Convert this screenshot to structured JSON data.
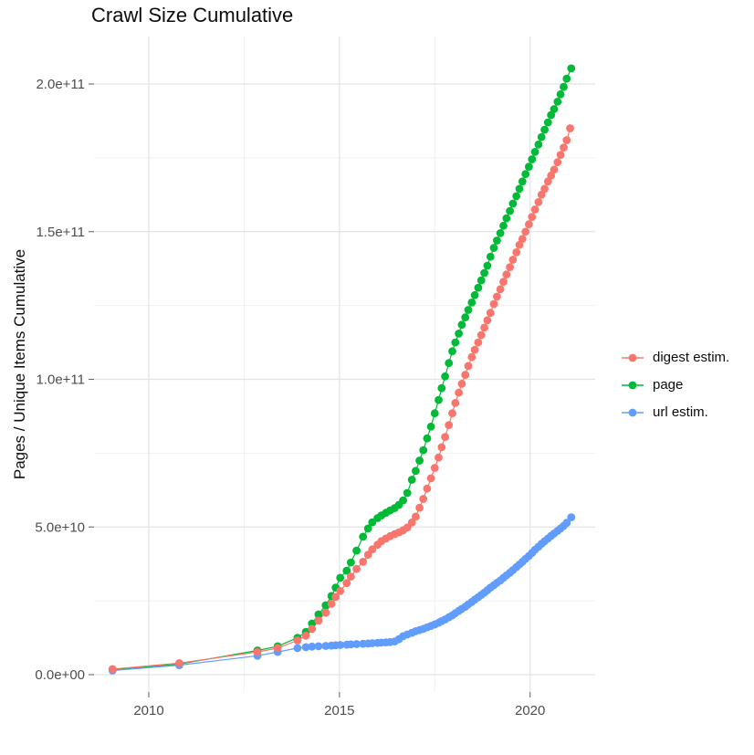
{
  "chart_data": {
    "type": "scatter",
    "title": "Crawl Size Cumulative",
    "xlabel": "",
    "ylabel": "Pages / Unique Items Cumulative",
    "legend_position": "right",
    "grid": true,
    "y_values_unit": "billions (1e9 pages / items)",
    "axes": {
      "x_domain": [
        2008.56,
        2021.7
      ],
      "y_domain_billions": [
        -4.3,
        216
      ],
      "x_ticks": [
        {
          "label": "2010",
          "value": 2010
        },
        {
          "label": "2015",
          "value": 2015
        },
        {
          "label": "2020",
          "value": 2020
        }
      ],
      "y_ticks": [
        {
          "label": "0.0e+00",
          "value": 0
        },
        {
          "label": "5.0e+10",
          "value": 50
        },
        {
          "label": "1.0e+11",
          "value": 100
        },
        {
          "label": "1.5e+11",
          "value": 150
        },
        {
          "label": "2.0e+11",
          "value": 200
        }
      ],
      "x_minor": [
        2012.5,
        2017.5
      ],
      "y_minor": [
        25,
        75,
        125,
        175
      ]
    },
    "series": [
      {
        "name": "digest estim.",
        "color": "#F8766D",
        "points": [
          [
            2009.05,
            1.9
          ],
          [
            2010.8,
            3.9
          ],
          [
            2012.85,
            7.7
          ],
          [
            2013.38,
            9.0
          ],
          [
            2013.9,
            11.6
          ],
          [
            2014.12,
            13.2
          ],
          [
            2014.28,
            15.5
          ],
          [
            2014.45,
            18.3
          ],
          [
            2014.64,
            21.0
          ],
          [
            2014.79,
            24.0
          ],
          [
            2014.9,
            26.3
          ],
          [
            2015.02,
            28.3
          ],
          [
            2015.19,
            31.0
          ],
          [
            2015.3,
            33.2
          ],
          [
            2015.45,
            35.8
          ],
          [
            2015.62,
            38.2
          ],
          [
            2015.75,
            40.6
          ],
          [
            2015.86,
            42.4
          ],
          [
            2016.0,
            44.0
          ],
          [
            2016.1,
            45.2
          ],
          [
            2016.22,
            46.1
          ],
          [
            2016.33,
            46.9
          ],
          [
            2016.45,
            47.6
          ],
          [
            2016.56,
            48.2
          ],
          [
            2016.67,
            48.9
          ],
          [
            2016.78,
            49.8
          ],
          [
            2016.9,
            51.5
          ],
          [
            2017.0,
            53.5
          ],
          [
            2017.1,
            56.5
          ],
          [
            2017.2,
            59.5
          ],
          [
            2017.3,
            63.0
          ],
          [
            2017.4,
            66.5
          ],
          [
            2017.5,
            70.0
          ],
          [
            2017.6,
            73.5
          ],
          [
            2017.68,
            77.0
          ],
          [
            2017.77,
            80.5
          ],
          [
            2017.87,
            84.5
          ],
          [
            2017.96,
            88.5
          ],
          [
            2018.04,
            92.0
          ],
          [
            2018.13,
            95.5
          ],
          [
            2018.21,
            98.5
          ],
          [
            2018.3,
            101.5
          ],
          [
            2018.38,
            104.5
          ],
          [
            2018.47,
            107.5
          ],
          [
            2018.55,
            110.0
          ],
          [
            2018.64,
            112.5
          ],
          [
            2018.72,
            115.0
          ],
          [
            2018.8,
            117.5
          ],
          [
            2018.88,
            120.0
          ],
          [
            2018.96,
            122.5
          ],
          [
            2019.05,
            125.5
          ],
          [
            2019.13,
            128.0
          ],
          [
            2019.22,
            130.5
          ],
          [
            2019.3,
            133.0
          ],
          [
            2019.38,
            135.5
          ],
          [
            2019.47,
            138.0
          ],
          [
            2019.55,
            140.5
          ],
          [
            2019.64,
            143.0
          ],
          [
            2019.72,
            145.5
          ],
          [
            2019.8,
            147.5
          ],
          [
            2019.88,
            150.0
          ],
          [
            2019.97,
            152.5
          ],
          [
            2020.05,
            155.0
          ],
          [
            2020.13,
            157.5
          ],
          [
            2020.22,
            160.0
          ],
          [
            2020.3,
            162.5
          ],
          [
            2020.38,
            164.5
          ],
          [
            2020.47,
            167.0
          ],
          [
            2020.55,
            169.0
          ],
          [
            2020.63,
            171.0
          ],
          [
            2020.72,
            173.5
          ],
          [
            2020.8,
            176.0
          ],
          [
            2020.88,
            178.5
          ],
          [
            2020.96,
            181.0
          ],
          [
            2021.05,
            185.0
          ]
        ]
      },
      {
        "name": "page",
        "color": "#00BA38",
        "points": [
          [
            2009.05,
            1.7
          ],
          [
            2010.8,
            3.6
          ],
          [
            2012.85,
            8.2
          ],
          [
            2013.38,
            9.6
          ],
          [
            2013.9,
            12.5
          ],
          [
            2014.12,
            14.5
          ],
          [
            2014.28,
            17.3
          ],
          [
            2014.45,
            20.4
          ],
          [
            2014.64,
            23.5
          ],
          [
            2014.79,
            26.6
          ],
          [
            2014.9,
            29.5
          ],
          [
            2015.02,
            32.8
          ],
          [
            2015.19,
            35.2
          ],
          [
            2015.3,
            38.0
          ],
          [
            2015.45,
            42.0
          ],
          [
            2015.62,
            46.7
          ],
          [
            2015.75,
            49.5
          ],
          [
            2015.86,
            51.6
          ],
          [
            2016.0,
            53.0
          ],
          [
            2016.1,
            53.9
          ],
          [
            2016.22,
            54.8
          ],
          [
            2016.33,
            55.6
          ],
          [
            2016.45,
            56.4
          ],
          [
            2016.56,
            57.5
          ],
          [
            2016.67,
            59.0
          ],
          [
            2016.78,
            61.5
          ],
          [
            2016.9,
            66.0
          ],
          [
            2017.0,
            69.0
          ],
          [
            2017.1,
            72.5
          ],
          [
            2017.2,
            76.0
          ],
          [
            2017.3,
            80.0
          ],
          [
            2017.4,
            84.0
          ],
          [
            2017.5,
            88.5
          ],
          [
            2017.6,
            93.0
          ],
          [
            2017.68,
            97.0
          ],
          [
            2017.77,
            101.0
          ],
          [
            2017.87,
            105.5
          ],
          [
            2017.96,
            109.5
          ],
          [
            2018.04,
            112.5
          ],
          [
            2018.13,
            115.5
          ],
          [
            2018.21,
            118.5
          ],
          [
            2018.3,
            121.0
          ],
          [
            2018.38,
            123.5
          ],
          [
            2018.47,
            126.0
          ],
          [
            2018.55,
            128.5
          ],
          [
            2018.64,
            131.0
          ],
          [
            2018.72,
            133.5
          ],
          [
            2018.8,
            136.0
          ],
          [
            2018.88,
            138.5
          ],
          [
            2018.96,
            141.5
          ],
          [
            2019.05,
            144.5
          ],
          [
            2019.13,
            147.0
          ],
          [
            2019.22,
            149.5
          ],
          [
            2019.3,
            152.0
          ],
          [
            2019.38,
            154.5
          ],
          [
            2019.47,
            157.0
          ],
          [
            2019.55,
            159.5
          ],
          [
            2019.64,
            162.0
          ],
          [
            2019.72,
            164.5
          ],
          [
            2019.8,
            167.0
          ],
          [
            2019.88,
            169.5
          ],
          [
            2019.97,
            172.0
          ],
          [
            2020.05,
            174.5
          ],
          [
            2020.13,
            177.0
          ],
          [
            2020.22,
            179.5
          ],
          [
            2020.3,
            182.0
          ],
          [
            2020.38,
            184.5
          ],
          [
            2020.47,
            187.0
          ],
          [
            2020.55,
            189.5
          ],
          [
            2020.63,
            191.5
          ],
          [
            2020.72,
            194.0
          ],
          [
            2020.8,
            196.5
          ],
          [
            2020.88,
            199.0
          ],
          [
            2020.96,
            201.8
          ],
          [
            2021.08,
            205.3
          ]
        ]
      },
      {
        "name": "url estim.",
        "color": "#619CFF",
        "points": [
          [
            2009.05,
            1.4
          ],
          [
            2010.8,
            3.2
          ],
          [
            2012.85,
            6.4
          ],
          [
            2013.38,
            7.7
          ],
          [
            2013.9,
            9.0
          ],
          [
            2014.12,
            9.3
          ],
          [
            2014.28,
            9.5
          ],
          [
            2014.45,
            9.6
          ],
          [
            2014.64,
            9.75
          ],
          [
            2014.79,
            9.85
          ],
          [
            2014.9,
            9.95
          ],
          [
            2015.02,
            10.05
          ],
          [
            2015.19,
            10.15
          ],
          [
            2015.3,
            10.25
          ],
          [
            2015.45,
            10.35
          ],
          [
            2015.62,
            10.45
          ],
          [
            2015.75,
            10.55
          ],
          [
            2015.86,
            10.65
          ],
          [
            2016.0,
            10.75
          ],
          [
            2016.1,
            10.85
          ],
          [
            2016.22,
            10.95
          ],
          [
            2016.33,
            11.05
          ],
          [
            2016.45,
            11.25
          ],
          [
            2016.56,
            12.0
          ],
          [
            2016.67,
            13.0
          ],
          [
            2016.78,
            13.6
          ],
          [
            2016.9,
            14.2
          ],
          [
            2017.0,
            14.7
          ],
          [
            2017.1,
            15.1
          ],
          [
            2017.2,
            15.5
          ],
          [
            2017.3,
            16.0
          ],
          [
            2017.4,
            16.5
          ],
          [
            2017.5,
            17.0
          ],
          [
            2017.6,
            17.6
          ],
          [
            2017.68,
            18.1
          ],
          [
            2017.77,
            18.7
          ],
          [
            2017.87,
            19.4
          ],
          [
            2017.96,
            20.1
          ],
          [
            2018.04,
            20.8
          ],
          [
            2018.13,
            21.6
          ],
          [
            2018.21,
            22.3
          ],
          [
            2018.3,
            23.0
          ],
          [
            2018.38,
            23.8
          ],
          [
            2018.47,
            24.6
          ],
          [
            2018.55,
            25.4
          ],
          [
            2018.64,
            26.2
          ],
          [
            2018.72,
            27.0
          ],
          [
            2018.8,
            27.8
          ],
          [
            2018.88,
            28.6
          ],
          [
            2018.96,
            29.5
          ],
          [
            2019.05,
            30.3
          ],
          [
            2019.13,
            31.1
          ],
          [
            2019.22,
            31.9
          ],
          [
            2019.3,
            32.8
          ],
          [
            2019.38,
            33.6
          ],
          [
            2019.47,
            34.5
          ],
          [
            2019.55,
            35.4
          ],
          [
            2019.64,
            36.4
          ],
          [
            2019.72,
            37.3
          ],
          [
            2019.8,
            38.2
          ],
          [
            2019.88,
            39.2
          ],
          [
            2019.97,
            40.2
          ],
          [
            2020.05,
            41.2
          ],
          [
            2020.13,
            42.3
          ],
          [
            2020.22,
            43.3
          ],
          [
            2020.3,
            44.3
          ],
          [
            2020.38,
            45.2
          ],
          [
            2020.47,
            46.1
          ],
          [
            2020.55,
            47.0
          ],
          [
            2020.63,
            47.8
          ],
          [
            2020.72,
            48.7
          ],
          [
            2020.8,
            49.5
          ],
          [
            2020.88,
            50.4
          ],
          [
            2020.96,
            51.4
          ],
          [
            2021.08,
            53.3
          ]
        ]
      }
    ]
  }
}
